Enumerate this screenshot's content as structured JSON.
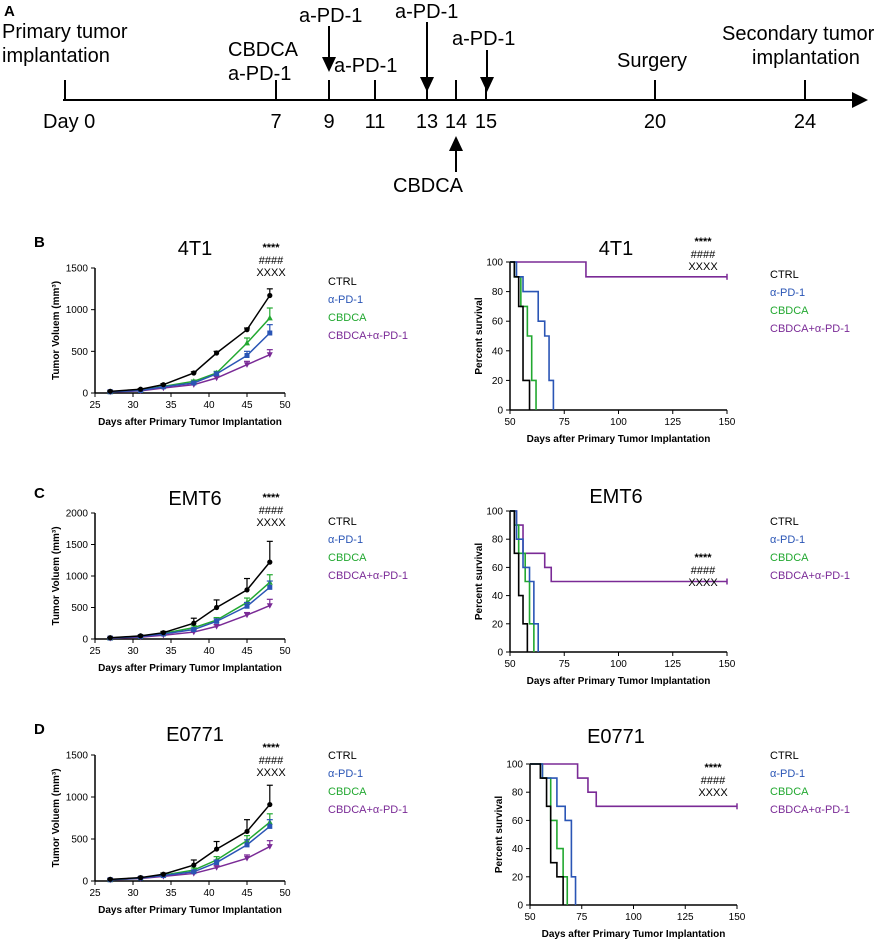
{
  "panel_letters": [
    "A",
    "B",
    "C",
    "D"
  ],
  "timeline": {
    "day_prefix": "Day",
    "days": [
      0,
      7,
      9,
      11,
      13,
      14,
      15,
      20,
      24
    ],
    "labels": {
      "primary": [
        "Primary tumor",
        "implantation"
      ],
      "cbdca_apd1": [
        "CBDCA",
        "a-PD-1"
      ],
      "apd1_9": "a-PD-1",
      "apd1_11": "a-PD-1",
      "apd1_13": "a-PD-1",
      "apd1_15": "a-PD-1",
      "surgery": "Surgery",
      "secondary": [
        "Secondary tumor",
        "implantation"
      ],
      "cbdca_14": "CBDCA"
    }
  },
  "legend": {
    "entries": [
      "CTRL",
      "α-PD-1",
      "CBDCA",
      "CBDCA+α-PD-1"
    ],
    "colors": [
      "#000000",
      "#2a55b5",
      "#22a830",
      "#7a2a96"
    ]
  },
  "significance": {
    "stars": "****",
    "hashes": "####",
    "xs": "XXXX"
  },
  "chart_data": [
    {
      "id": "B-volume",
      "type": "line",
      "title": "4T1",
      "xlabel": "Days after Primary Tumor Implantation",
      "ylabel": "Tumor Voluem (mm³)",
      "xlim": [
        25,
        50
      ],
      "ylim": [
        0,
        1500
      ],
      "xticks": [
        25,
        30,
        35,
        40,
        45,
        50
      ],
      "yticks": [
        0,
        500,
        1000,
        1500
      ],
      "x": [
        27,
        31,
        34,
        38,
        41,
        45,
        48
      ],
      "series": [
        {
          "name": "CTRL",
          "values": [
            20,
            45,
            100,
            240,
            480,
            760,
            1170
          ],
          "errors": [
            5,
            8,
            12,
            15,
            20,
            20,
            80
          ]
        },
        {
          "name": "α-PD-1",
          "values": [
            15,
            30,
            75,
            120,
            230,
            450,
            720
          ],
          "errors": [
            5,
            6,
            8,
            12,
            20,
            50,
            100
          ]
        },
        {
          "name": "CBDCA",
          "values": [
            15,
            35,
            80,
            140,
            240,
            600,
            900
          ],
          "errors": [
            5,
            6,
            10,
            15,
            20,
            60,
            120
          ]
        },
        {
          "name": "CBDCA+α-PD-1",
          "values": [
            12,
            25,
            60,
            100,
            180,
            340,
            460
          ],
          "errors": [
            4,
            5,
            8,
            10,
            20,
            40,
            60
          ]
        }
      ]
    },
    {
      "id": "B-survival",
      "type": "line",
      "title": "4T1",
      "xlabel": "Days after Primary Tumor Implantation",
      "ylabel": "Percent survival",
      "xlim": [
        50,
        150
      ],
      "ylim": [
        0,
        100
      ],
      "xticks": [
        50,
        75,
        100,
        125,
        150
      ],
      "yticks": [
        0,
        20,
        40,
        60,
        80,
        100
      ],
      "series": [
        {
          "name": "CTRL",
          "steps": [
            [
              50,
              100
            ],
            [
              52,
              90
            ],
            [
              54,
              70
            ],
            [
              56,
              20
            ],
            [
              59,
              0
            ]
          ]
        },
        {
          "name": "α-PD-1",
          "steps": [
            [
              50,
              100
            ],
            [
              53,
              90
            ],
            [
              56,
              80
            ],
            [
              63,
              60
            ],
            [
              66,
              50
            ],
            [
              68,
              20
            ],
            [
              70,
              0
            ]
          ]
        },
        {
          "name": "CBDCA",
          "steps": [
            [
              50,
              100
            ],
            [
              52,
              90
            ],
            [
              55,
              70
            ],
            [
              58,
              50
            ],
            [
              60,
              20
            ],
            [
              62,
              0
            ]
          ]
        },
        {
          "name": "CBDCA+α-PD-1",
          "steps": [
            [
              50,
              100
            ],
            [
              85,
              90
            ],
            [
              150,
              90
            ]
          ]
        }
      ]
    },
    {
      "id": "C-volume",
      "type": "line",
      "title": "EMT6",
      "xlabel": "Days after Primary Tumor Implantation",
      "ylabel": "Tumor Voluem (mm³)",
      "xlim": [
        25,
        50
      ],
      "ylim": [
        0,
        2000
      ],
      "xticks": [
        25,
        30,
        35,
        40,
        45,
        50
      ],
      "yticks": [
        0,
        500,
        1000,
        1500,
        2000
      ],
      "x": [
        27,
        31,
        34,
        38,
        41,
        45,
        48
      ],
      "series": [
        {
          "name": "CTRL",
          "values": [
            20,
            50,
            100,
            250,
            500,
            780,
            1220
          ],
          "errors": [
            5,
            10,
            20,
            80,
            120,
            180,
            330
          ]
        },
        {
          "name": "α-PD-1",
          "values": [
            15,
            40,
            80,
            150,
            280,
            520,
            820
          ],
          "errors": [
            5,
            8,
            12,
            20,
            40,
            60,
            100
          ]
        },
        {
          "name": "CBDCA",
          "values": [
            15,
            45,
            90,
            180,
            300,
            580,
            900
          ],
          "errors": [
            5,
            8,
            15,
            30,
            40,
            70,
            120
          ]
        },
        {
          "name": "CBDCA+α-PD-1",
          "values": [
            12,
            30,
            60,
            110,
            200,
            380,
            530
          ],
          "errors": [
            4,
            6,
            10,
            15,
            25,
            40,
            100
          ]
        }
      ]
    },
    {
      "id": "C-survival",
      "type": "line",
      "title": "EMT6",
      "xlabel": "Days after Primary Tumor Implantation",
      "ylabel": "Percent survival",
      "xlim": [
        50,
        150
      ],
      "ylim": [
        0,
        100
      ],
      "xticks": [
        50,
        75,
        100,
        125,
        150
      ],
      "yticks": [
        0,
        20,
        40,
        60,
        80,
        100
      ],
      "series": [
        {
          "name": "CTRL",
          "steps": [
            [
              50,
              100
            ],
            [
              52,
              70
            ],
            [
              54,
              40
            ],
            [
              56,
              20
            ],
            [
              58,
              0
            ]
          ]
        },
        {
          "name": "α-PD-1",
          "steps": [
            [
              50,
              100
            ],
            [
              53,
              80
            ],
            [
              56,
              60
            ],
            [
              59,
              50
            ],
            [
              61,
              20
            ],
            [
              63,
              0
            ]
          ]
        },
        {
          "name": "CBDCA",
          "steps": [
            [
              50,
              100
            ],
            [
              52,
              90
            ],
            [
              54,
              70
            ],
            [
              57,
              50
            ],
            [
              59,
              20
            ],
            [
              61,
              0
            ]
          ]
        },
        {
          "name": "CBDCA+α-PD-1",
          "steps": [
            [
              50,
              100
            ],
            [
              53,
              90
            ],
            [
              56,
              70
            ],
            [
              66,
              60
            ],
            [
              69,
              50
            ],
            [
              150,
              50
            ]
          ]
        }
      ]
    },
    {
      "id": "D-volume",
      "type": "line",
      "title": "E0771",
      "xlabel": "Days after Primary Tumor Implantation",
      "ylabel": "Tumor Voluem (mm³)",
      "xlim": [
        25,
        50
      ],
      "ylim": [
        0,
        1500
      ],
      "xticks": [
        25,
        30,
        35,
        40,
        45,
        50
      ],
      "yticks": [
        0,
        500,
        1000,
        1500
      ],
      "x": [
        27,
        31,
        34,
        38,
        41,
        45,
        48
      ],
      "series": [
        {
          "name": "CTRL",
          "values": [
            20,
            40,
            80,
            190,
            380,
            590,
            910
          ],
          "errors": [
            5,
            8,
            15,
            60,
            90,
            140,
            230
          ]
        },
        {
          "name": "α-PD-1",
          "values": [
            15,
            35,
            65,
            110,
            220,
            430,
            650
          ],
          "errors": [
            5,
            6,
            10,
            20,
            30,
            60,
            80
          ]
        },
        {
          "name": "CBDCA",
          "values": [
            15,
            35,
            70,
            130,
            250,
            480,
            700
          ],
          "errors": [
            5,
            6,
            12,
            25,
            40,
            60,
            100
          ]
        },
        {
          "name": "CBDCA+α-PD-1",
          "values": [
            12,
            30,
            55,
            90,
            160,
            270,
            410
          ],
          "errors": [
            4,
            5,
            8,
            12,
            20,
            40,
            70
          ]
        }
      ]
    },
    {
      "id": "D-survival",
      "type": "line",
      "title": "E0771",
      "xlabel": "Days after Primary Tumor Implantation",
      "ylabel": "Percent survival",
      "xlim": [
        50,
        150
      ],
      "ylim": [
        0,
        100
      ],
      "xticks": [
        50,
        75,
        100,
        125,
        150
      ],
      "yticks": [
        0,
        20,
        40,
        60,
        80,
        100
      ],
      "series": [
        {
          "name": "CTRL",
          "steps": [
            [
              50,
              100
            ],
            [
              55,
              90
            ],
            [
              58,
              70
            ],
            [
              60,
              30
            ],
            [
              63,
              20
            ],
            [
              66,
              0
            ]
          ]
        },
        {
          "name": "α-PD-1",
          "steps": [
            [
              50,
              100
            ],
            [
              56,
              90
            ],
            [
              63,
              70
            ],
            [
              67,
              60
            ],
            [
              70,
              20
            ],
            [
              72,
              0
            ]
          ]
        },
        {
          "name": "CBDCA",
          "steps": [
            [
              50,
              100
            ],
            [
              56,
              90
            ],
            [
              60,
              60
            ],
            [
              63,
              40
            ],
            [
              66,
              20
            ],
            [
              68,
              0
            ]
          ]
        },
        {
          "name": "CBDCA+α-PD-1",
          "steps": [
            [
              50,
              100
            ],
            [
              73,
              90
            ],
            [
              78,
              80
            ],
            [
              82,
              70
            ],
            [
              150,
              70
            ]
          ]
        }
      ]
    }
  ]
}
